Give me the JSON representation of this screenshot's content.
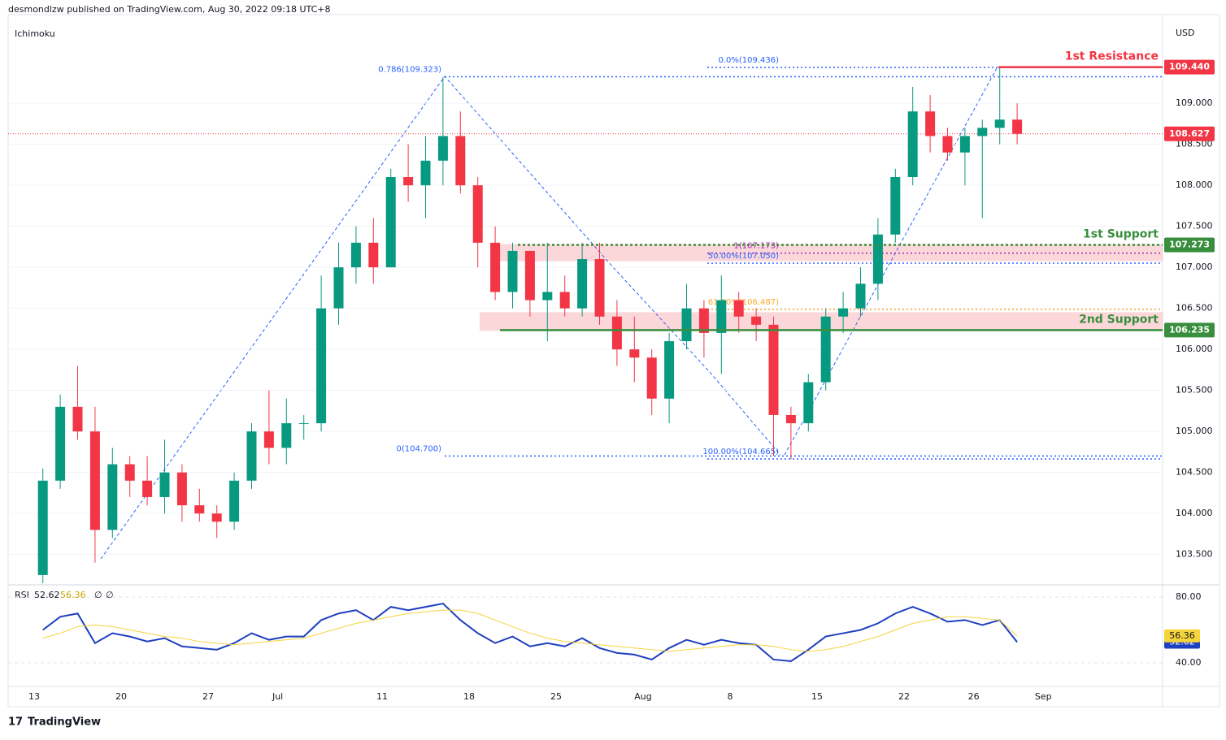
{
  "header": {
    "publisher": "desmondlzw published on TradingView.com, Aug 30, 2022 09:18 UTC+8",
    "indicator": "Ichimoku",
    "currency": "USD",
    "footer": "TradingView"
  },
  "chart_data": [
    {
      "type": "candlestick",
      "categories": [
        "13",
        null,
        null,
        null,
        null,
        "20",
        null,
        null,
        null,
        null,
        "27",
        null,
        null,
        null,
        "Jul",
        null,
        null,
        null,
        null,
        null,
        "11",
        null,
        null,
        null,
        null,
        "18",
        null,
        null,
        null,
        null,
        "25",
        null,
        null,
        null,
        null,
        "Aug",
        null,
        null,
        null,
        null,
        "8",
        null,
        null,
        null,
        null,
        "15",
        null,
        null,
        null,
        null,
        "22",
        null,
        null,
        null,
        "26",
        null,
        null,
        null,
        "Sep"
      ],
      "open": [
        103.25,
        104.4,
        105.3,
        105.0,
        103.8,
        104.6,
        104.4,
        104.2,
        104.5,
        104.1,
        104.0,
        103.9,
        104.4,
        105.0,
        104.8,
        105.1,
        105.1,
        106.5,
        107.0,
        107.3,
        107.0,
        108.1,
        108.0,
        108.3,
        108.6,
        108.0,
        107.3,
        106.7,
        107.2,
        106.6,
        106.7,
        106.5,
        107.1,
        106.4,
        106.0,
        105.9,
        105.4,
        106.1,
        106.5,
        106.2,
        106.6,
        106.4,
        106.3,
        105.2,
        105.1,
        105.6,
        106.4,
        106.5,
        106.8,
        107.4,
        108.1,
        108.9,
        108.6,
        108.4,
        108.6,
        108.7,
        108.8,
        null,
        null
      ],
      "high": [
        104.55,
        105.45,
        105.8,
        105.3,
        104.8,
        104.7,
        104.7,
        104.9,
        104.6,
        104.3,
        104.1,
        104.5,
        105.1,
        105.5,
        105.4,
        105.2,
        106.9,
        107.3,
        107.5,
        107.6,
        108.2,
        108.5,
        108.6,
        109.32,
        108.9,
        108.1,
        107.5,
        107.3,
        107.2,
        107.3,
        106.9,
        107.3,
        107.3,
        106.6,
        106.4,
        106.0,
        106.2,
        106.8,
        106.6,
        106.9,
        106.7,
        106.5,
        106.4,
        105.3,
        105.7,
        106.5,
        106.7,
        107.0,
        107.6,
        108.2,
        109.2,
        109.1,
        108.7,
        108.7,
        108.8,
        109.44,
        109.0,
        null,
        null
      ],
      "low": [
        103.15,
        104.3,
        104.9,
        103.4,
        103.7,
        104.2,
        104.1,
        104.0,
        103.9,
        103.9,
        103.7,
        103.8,
        104.3,
        104.6,
        104.6,
        104.9,
        105.0,
        106.3,
        106.8,
        106.8,
        107.0,
        107.8,
        107.6,
        108.0,
        107.9,
        107.0,
        106.6,
        106.5,
        106.4,
        106.1,
        106.4,
        106.4,
        106.3,
        105.8,
        105.6,
        105.2,
        105.1,
        106.0,
        105.9,
        105.7,
        106.2,
        106.1,
        104.7,
        104.66,
        105.0,
        105.5,
        106.2,
        106.4,
        106.6,
        107.3,
        108.0,
        108.4,
        108.3,
        108.0,
        107.6,
        108.5,
        108.5,
        null,
        null
      ],
      "close": [
        104.4,
        105.3,
        105.0,
        103.8,
        104.6,
        104.4,
        104.2,
        104.5,
        104.1,
        104.0,
        103.9,
        104.4,
        105.0,
        104.8,
        105.1,
        105.1,
        106.5,
        107.0,
        107.3,
        107.0,
        108.1,
        108.0,
        108.3,
        108.6,
        108.0,
        107.3,
        106.7,
        107.2,
        106.6,
        106.7,
        106.5,
        107.1,
        106.4,
        106.0,
        105.9,
        105.4,
        106.1,
        106.5,
        106.2,
        106.6,
        106.4,
        106.3,
        105.2,
        105.1,
        105.6,
        106.4,
        106.5,
        106.8,
        107.4,
        108.1,
        108.9,
        108.6,
        108.4,
        108.6,
        108.7,
        108.8,
        108.627,
        null,
        null
      ],
      "up_color": "#089981",
      "down_color": "#f23645",
      "ylim": [
        103.15,
        110.08
      ],
      "yticks": [
        {
          "value": 103.5,
          "label": "103.500"
        },
        {
          "value": 104,
          "label": "104.000"
        },
        {
          "value": 104.5,
          "label": "104.500"
        },
        {
          "value": 105,
          "label": "105.000"
        },
        {
          "value": 105.5,
          "label": "105.500"
        },
        {
          "value": 106,
          "label": "106.000"
        },
        {
          "value": 106.5,
          "label": "106.500"
        },
        {
          "value": 107,
          "label": "107.000"
        },
        {
          "value": 107.5,
          "label": "107.500"
        },
        {
          "value": 108,
          "label": "108.000"
        },
        {
          "value": 108.5,
          "label": "108.500"
        },
        {
          "value": 109,
          "label": "109.000"
        }
      ],
      "levels": [
        {
          "label": "1st Resistance",
          "value": 109.44,
          "value_label": "109.440",
          "color": "#f23645"
        },
        {
          "label": "1st Support",
          "value": 107.273,
          "color": "#388e3c"
        },
        {
          "label": "2nd Support",
          "value": 106.235,
          "color": "#388e3c"
        }
      ],
      "fib_levels": [
        {
          "label": "0.786(109.323)",
          "value": 109.323,
          "color": "#2962ff"
        },
        {
          "label": "0(104.700)",
          "value": 104.7,
          "color": "#2962ff"
        },
        {
          "label": "0.0%(109.436)",
          "value": 109.436,
          "color": "#2962ff"
        },
        {
          "label": "1(107.173)",
          "value": 107.173,
          "color": "#9c27b0"
        },
        {
          "label": "50.00%(107.050)",
          "value": 107.05,
          "color": "#2962ff"
        },
        {
          "label": "61.80%(106.487)",
          "value": 106.487,
          "color": "#f9a825"
        },
        {
          "label": "100.00%(104.665)",
          "value": 104.665,
          "color": "#2962ff"
        }
      ]
    },
    {
      "type": "line",
      "title": "RSI",
      "flags": [
        "∅",
        "∅"
      ],
      "series": [
        {
          "color": "#1e3fbf",
          "values": [
            60,
            68,
            70,
            52,
            58,
            56,
            53,
            55,
            50,
            49,
            48,
            52,
            58,
            54,
            56,
            56,
            66,
            70,
            72,
            66,
            74,
            72,
            74,
            76,
            66,
            58,
            52,
            56,
            50,
            52,
            50,
            55,
            49,
            46,
            45,
            42,
            49,
            54,
            51,
            54,
            52,
            51,
            42,
            41,
            48,
            56,
            58,
            60,
            64,
            70,
            74,
            70,
            65,
            66,
            63,
            66,
            52.62,
            null,
            null
          ]
        },
        {
          "color": "#f5d33a",
          "values": [
            55,
            58,
            62,
            63,
            62,
            60,
            58,
            56,
            55,
            53,
            52,
            51,
            52,
            53,
            54,
            55,
            58,
            61,
            64,
            66,
            68,
            70,
            71,
            72,
            72,
            70,
            66,
            62,
            58,
            55,
            53,
            52,
            51,
            50,
            49,
            48,
            47,
            48,
            49,
            50,
            51,
            51,
            50,
            48,
            47,
            48,
            50,
            53,
            56,
            60,
            64,
            66,
            68,
            68,
            67,
            66,
            56.36,
            null,
            null
          ]
        }
      ],
      "ylim": [
        25.7,
        86.4
      ],
      "yticks": [
        {
          "value": 80,
          "label": "80.00"
        },
        {
          "value": 40,
          "label": "40.00"
        }
      ]
    }
  ]
}
